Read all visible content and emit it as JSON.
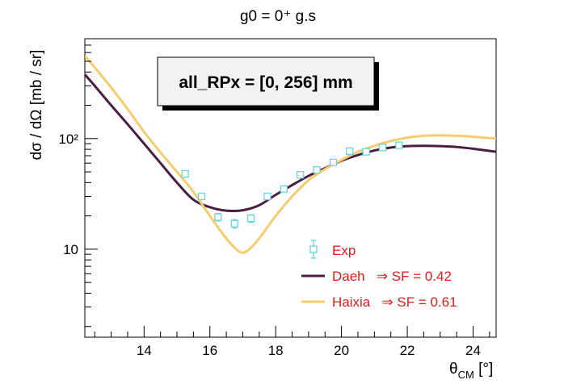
{
  "chart_data": {
    "type": "line",
    "title": "g0 = 0⁺ g.s",
    "xlabel": "θ_CM [°]",
    "xlabel_main": "θ",
    "xlabel_sub": "CM",
    "xlabel_unit": " [°]",
    "ylabel": "dσ / dΩ [mb / sr]",
    "xlim": [
      12.2,
      24.7
    ],
    "ylim": [
      1.6,
      800
    ],
    "log_y": true,
    "x_ticks": [
      14,
      16,
      18,
      20,
      22,
      24
    ],
    "y_ticks": [
      {
        "value": 10,
        "label": "10"
      },
      {
        "value": 100,
        "label": "10²"
      }
    ],
    "annotation": "all_RPx = [0, 256] mm",
    "legend_position": "bottom-right",
    "grid": false,
    "series": [
      {
        "name": "Exp",
        "kind": "points",
        "color": "#5ad4dd",
        "points": [
          {
            "x": 15.25,
            "y": 48,
            "err": 3
          },
          {
            "x": 15.75,
            "y": 30,
            "err": 2
          },
          {
            "x": 16.25,
            "y": 19.5,
            "err": 1.5
          },
          {
            "x": 16.75,
            "y": 17,
            "err": 1.5
          },
          {
            "x": 17.25,
            "y": 19,
            "err": 1.5
          },
          {
            "x": 17.75,
            "y": 30,
            "err": 2
          },
          {
            "x": 18.25,
            "y": 35,
            "err": 2
          },
          {
            "x": 18.75,
            "y": 47,
            "err": 3
          },
          {
            "x": 19.25,
            "y": 52,
            "err": 3
          },
          {
            "x": 19.75,
            "y": 61,
            "err": 3
          },
          {
            "x": 20.25,
            "y": 77,
            "err": 4
          },
          {
            "x": 20.75,
            "y": 76,
            "err": 4
          },
          {
            "x": 21.25,
            "y": 83,
            "err": 4
          },
          {
            "x": 21.75,
            "y": 87,
            "err": 4
          }
        ]
      },
      {
        "name": "Daeh",
        "legend_label": "Daeh   ⇒ SF = 0.42",
        "kind": "line",
        "color": "#4a1e44",
        "x": [
          12.2,
          12.5,
          13.0,
          13.5,
          14.0,
          14.5,
          15.0,
          15.5,
          16.0,
          16.5,
          17.0,
          17.5,
          18.0,
          18.5,
          19.0,
          19.5,
          20.0,
          20.5,
          21.0,
          21.5,
          22.0,
          22.5,
          23.0,
          23.5,
          24.0,
          24.7
        ],
        "y": [
          380,
          300,
          200,
          135,
          90,
          60,
          40,
          28,
          24,
          22.3,
          22.5,
          25,
          31,
          38,
          46,
          54,
          63,
          71,
          78,
          83,
          85.5,
          86,
          85.5,
          84,
          81,
          76
        ]
      },
      {
        "name": "Haixia",
        "legend_label": "Haixia   ⇒ SF = 0.61",
        "kind": "line",
        "color": "#f5cc6e",
        "x": [
          12.2,
          12.5,
          13.0,
          13.5,
          14.0,
          14.5,
          15.0,
          15.5,
          16.0,
          16.5,
          16.8,
          17.0,
          17.2,
          17.5,
          18.0,
          18.5,
          19.0,
          19.5,
          20.0,
          20.5,
          21.0,
          21.5,
          22.0,
          22.5,
          23.0,
          23.5,
          24.0,
          24.7
        ],
        "y": [
          560,
          440,
          290,
          185,
          115,
          75,
          50,
          33,
          20,
          12.5,
          10,
          9.3,
          10,
          12.5,
          20,
          30,
          42,
          53,
          64,
          76,
          86,
          95,
          102,
          106,
          107,
          106,
          104,
          100
        ]
      }
    ]
  },
  "colors": {
    "legend_text": "#e41a1a",
    "axis": "#000000",
    "annotation_bg": "#f2f2f2"
  }
}
